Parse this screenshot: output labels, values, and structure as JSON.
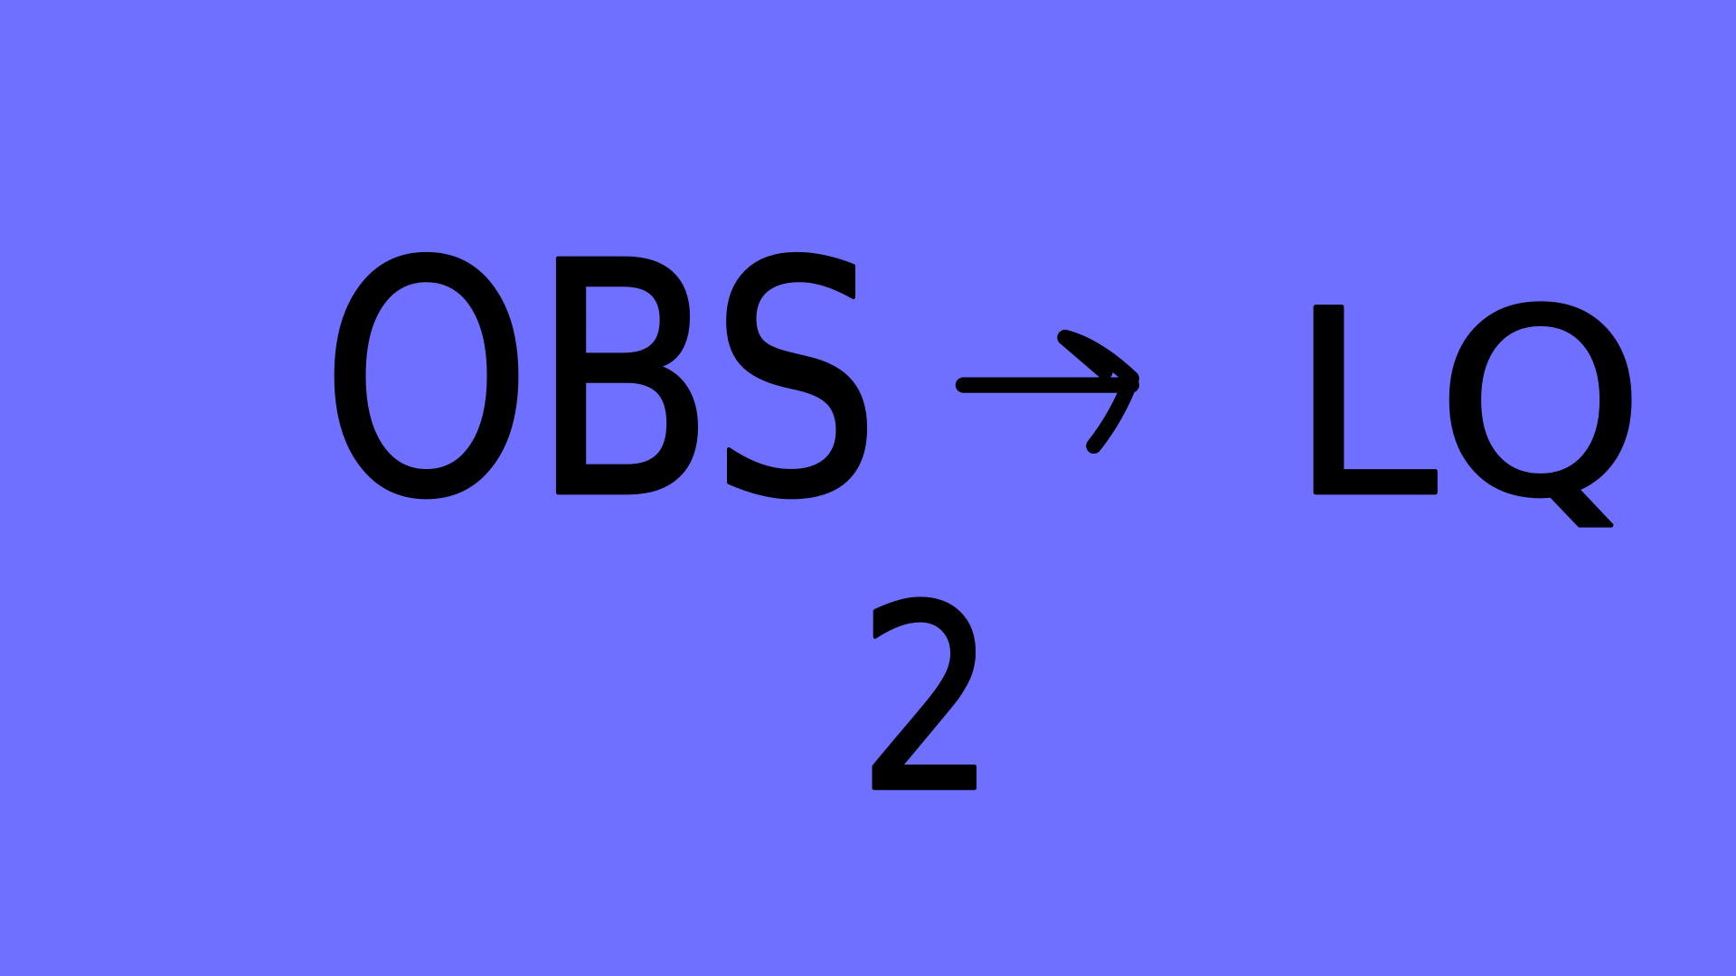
{
  "drawing": {
    "left": "OBS",
    "right": "LQ",
    "below": "2"
  }
}
